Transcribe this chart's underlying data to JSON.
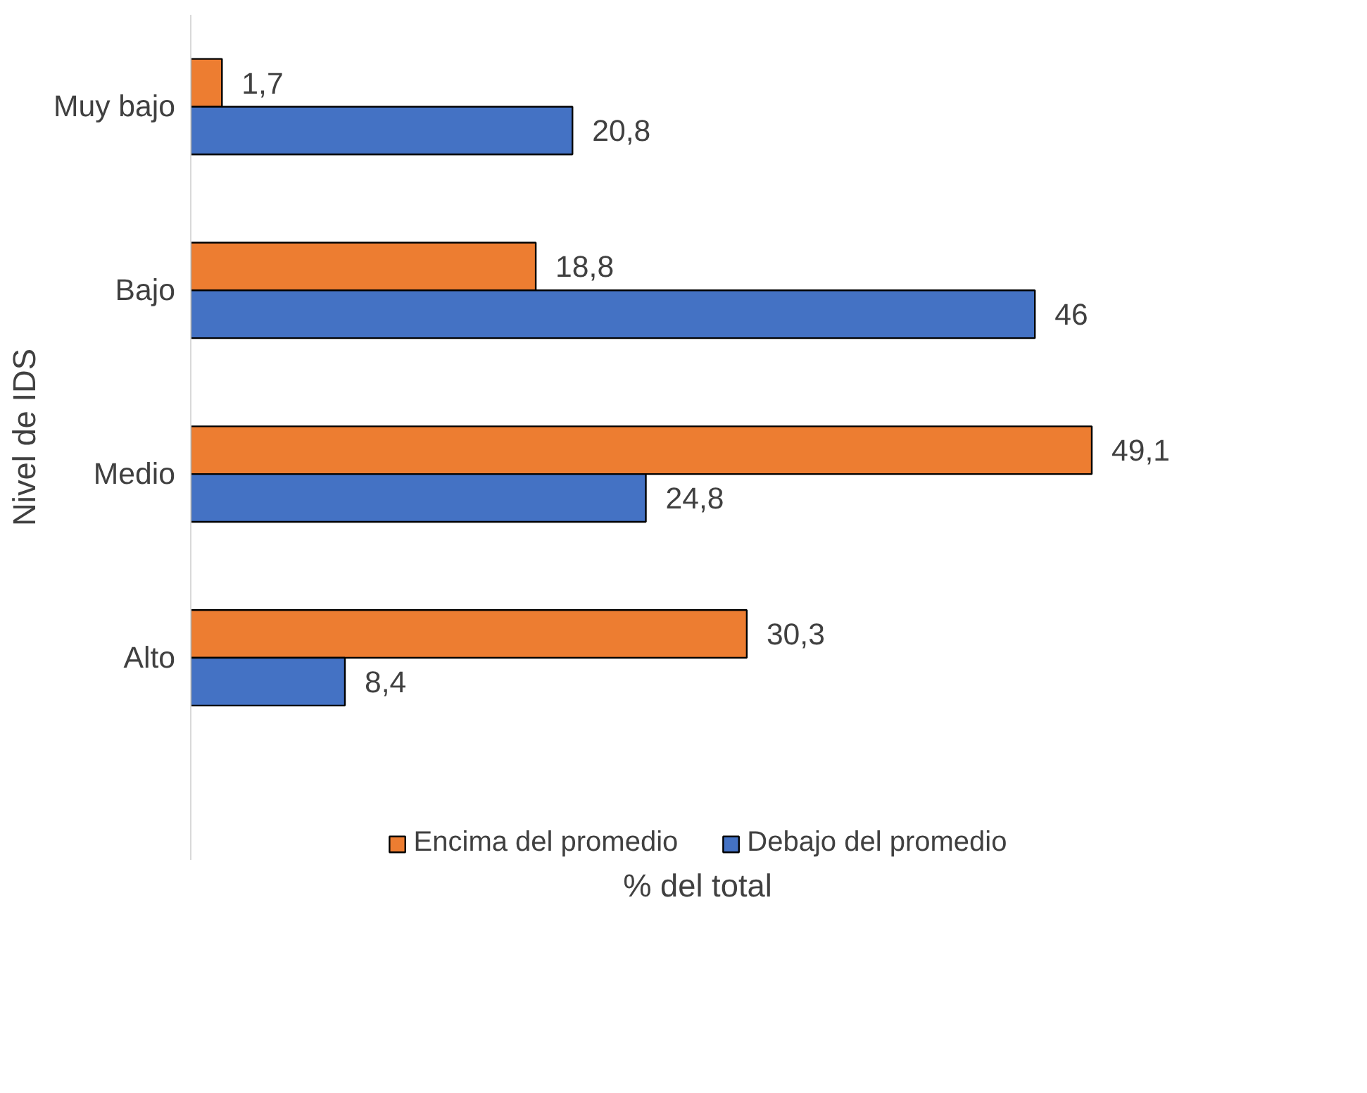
{
  "chart_data": {
    "type": "bar",
    "orientation": "horizontal",
    "xlabel": "% del total",
    "ylabel": "Nivel de IDS",
    "categories": [
      "Muy bajo",
      "Bajo",
      "Medio",
      "Alto"
    ],
    "series": [
      {
        "name": "Encima del promedio",
        "color": "#ed7d31",
        "values": [
          1.7,
          18.8,
          49.1,
          30.3
        ],
        "value_labels": [
          "1,7",
          "18,8",
          "49,1",
          "30,3"
        ]
      },
      {
        "name": "Debajo del promedio",
        "color": "#4472c4",
        "values": [
          20.8,
          46,
          24.8,
          8.4
        ],
        "value_labels": [
          "20,8",
          "46",
          "24,8",
          "8,4"
        ]
      }
    ],
    "legend": "bottom",
    "grid": false
  }
}
